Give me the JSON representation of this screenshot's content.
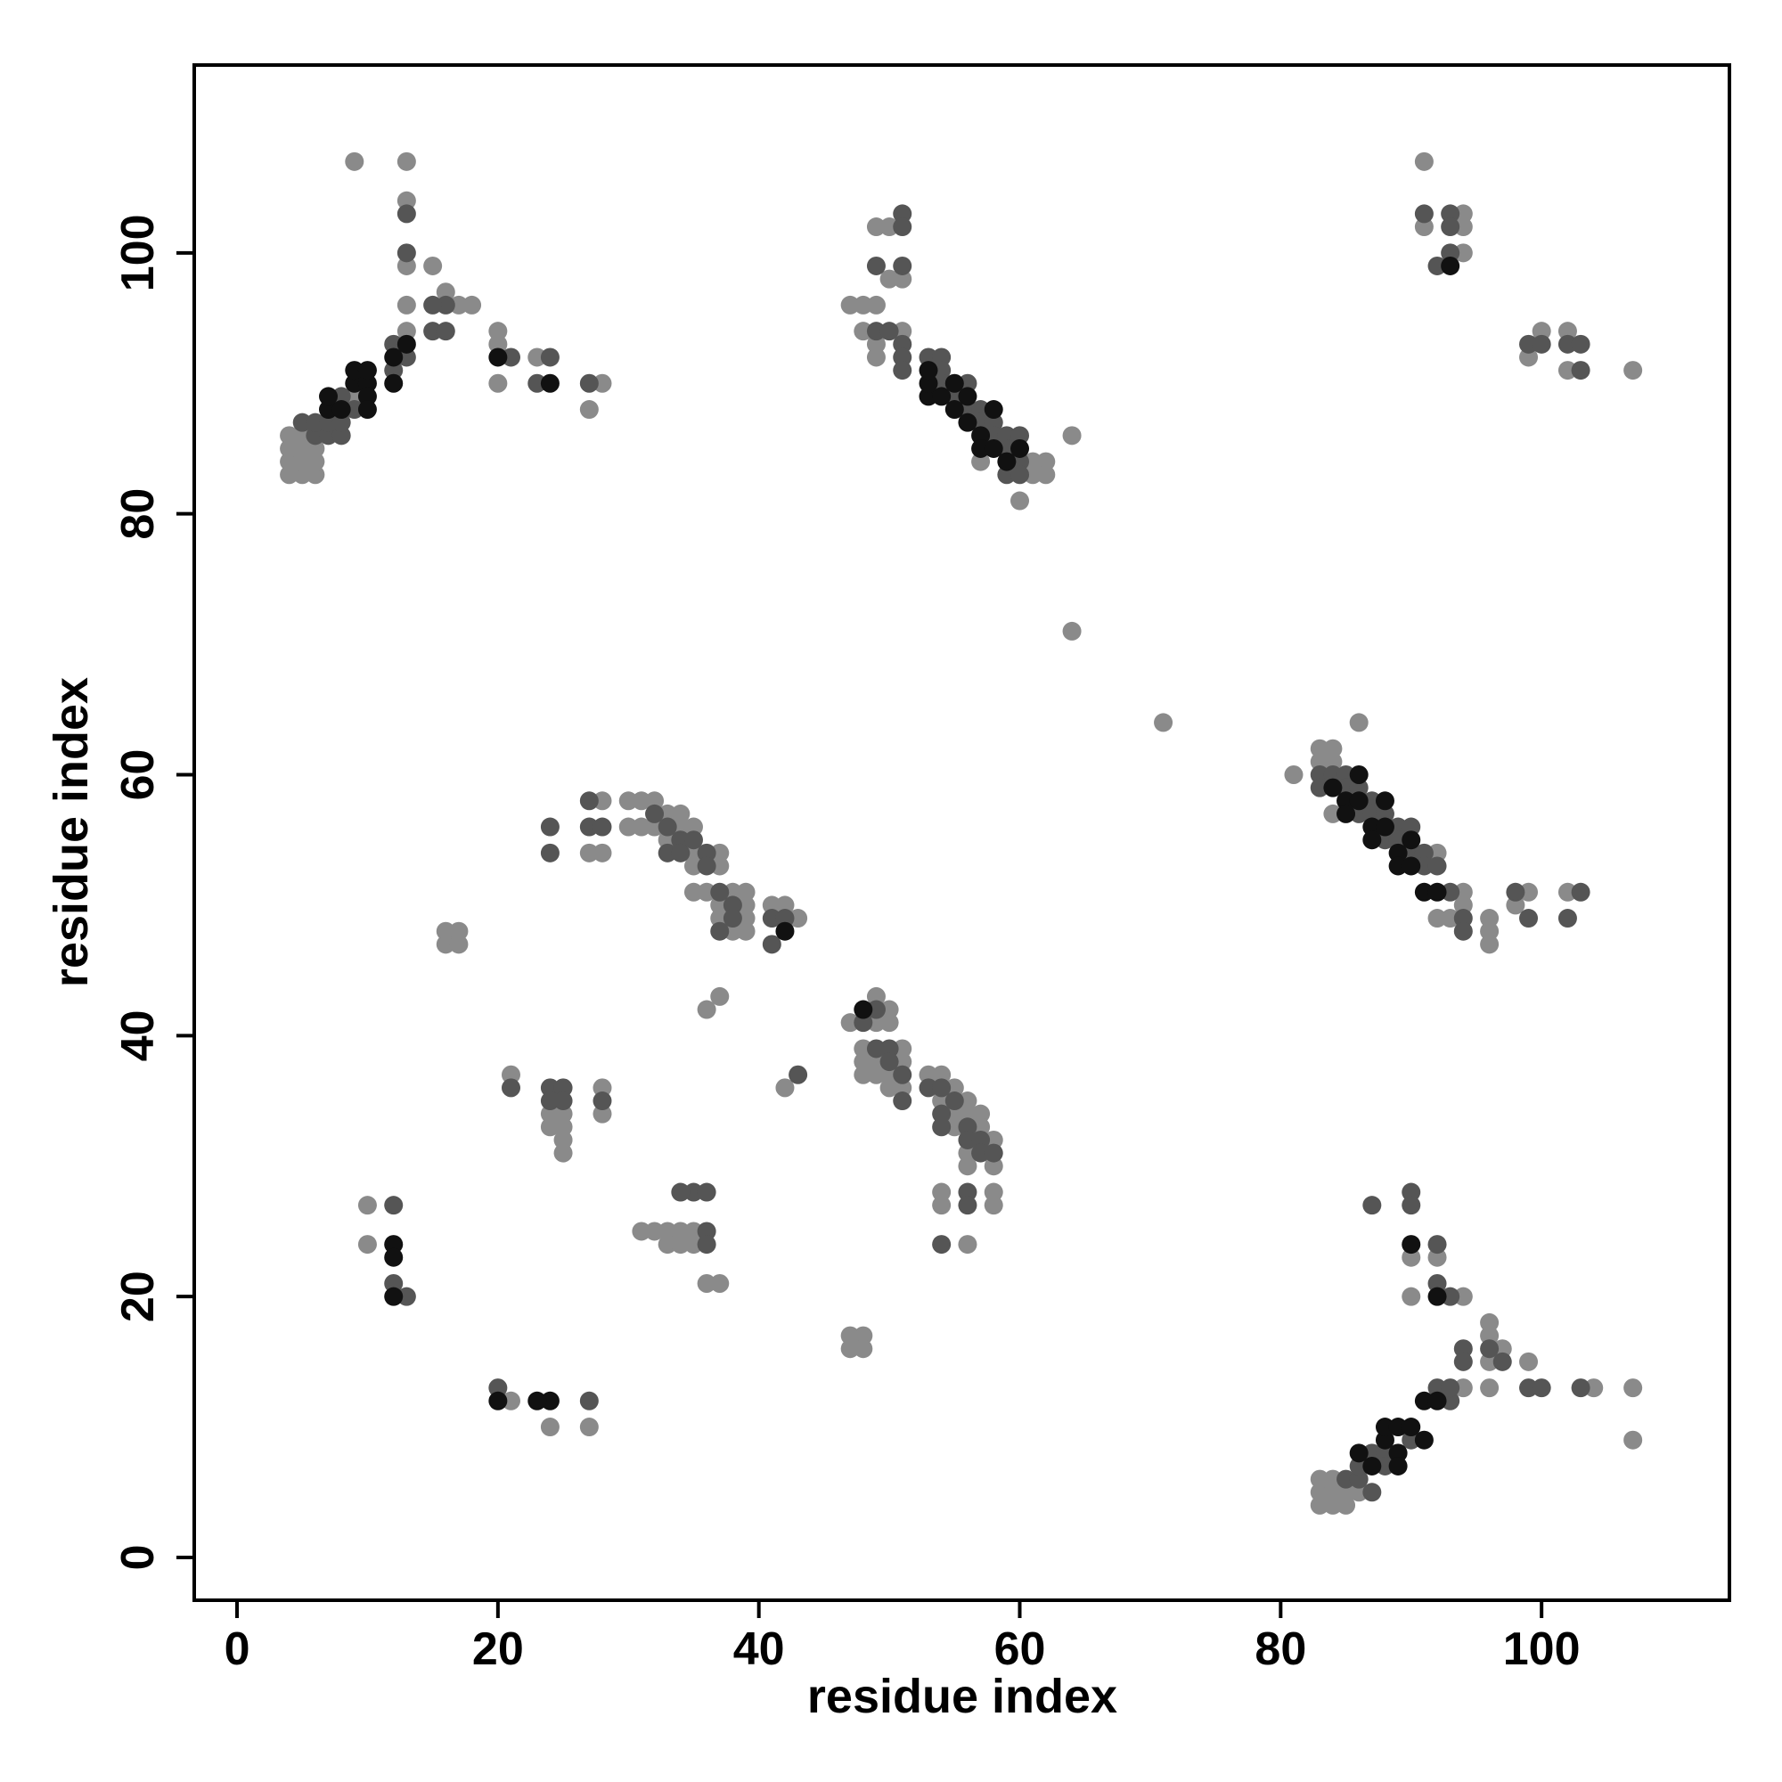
{
  "chart_data": {
    "type": "scatter",
    "x_label": "residue index",
    "y_label": "residue index",
    "xlim": [
      -3.28,
      114.4
    ],
    "ylim": [
      -3.28,
      114.4
    ],
    "xticks": [
      0,
      20,
      40,
      60,
      80,
      100
    ],
    "yticks": [
      0,
      20,
      40,
      60,
      80,
      100
    ],
    "grid": false,
    "series": [
      {
        "color": "#8a8a8a",
        "x": [
          4,
          4,
          4,
          4,
          5,
          5,
          5,
          5,
          6,
          6,
          6,
          9,
          9,
          13,
          13,
          13,
          13,
          13,
          15,
          16,
          17,
          18,
          20,
          20,
          20,
          23,
          28,
          27,
          47,
          48,
          49,
          48,
          49,
          49,
          50,
          51,
          49,
          50,
          51,
          57,
          60,
          61,
          61,
          62,
          62,
          64,
          64,
          71,
          81,
          83,
          83,
          84,
          84,
          84,
          86,
          92,
          92,
          93,
          94,
          94,
          96,
          96,
          96,
          98,
          99,
          102,
          83,
          83,
          83,
          84,
          84,
          84,
          85,
          85,
          86,
          90,
          90,
          92,
          94,
          96,
          96,
          96,
          97,
          96,
          94,
          99,
          104,
          107,
          107,
          91,
          91,
          94,
          94,
          94,
          99,
          100,
          102,
          102,
          107,
          27,
          28,
          28,
          30,
          31,
          32,
          30,
          31,
          32,
          33,
          33,
          34,
          34,
          35,
          35,
          35,
          37,
          37,
          35,
          36,
          38,
          39,
          37,
          39,
          37,
          39,
          38,
          39,
          41,
          42,
          43,
          16,
          17,
          16,
          17,
          36,
          37,
          47,
          49,
          49,
          50,
          50,
          48,
          48,
          48,
          49,
          49,
          50,
          50,
          51,
          51,
          51,
          53,
          54,
          54,
          55,
          55,
          55,
          56,
          56,
          56,
          56,
          57,
          57,
          58,
          58,
          54,
          54,
          58,
          58,
          56,
          42,
          47,
          48,
          47,
          48,
          21,
          24,
          25,
          24,
          25,
          25,
          25,
          28,
          28,
          10,
          10,
          31,
          32,
          33,
          34,
          35,
          33,
          34,
          35,
          36,
          37,
          21,
          24,
          27
        ],
        "y": [
          83,
          84,
          85,
          86,
          83,
          84,
          85,
          86,
          83,
          84,
          85,
          89,
          107,
          107,
          104,
          99,
          96,
          94,
          99,
          97,
          96,
          96,
          94,
          93,
          90,
          92,
          90,
          88,
          96,
          96,
          96,
          94,
          93,
          92,
          98,
          98,
          102,
          102,
          94,
          84,
          81,
          84,
          83,
          84,
          83,
          86,
          71,
          64,
          60,
          62,
          61,
          62,
          61,
          57,
          64,
          54,
          49,
          49,
          51,
          50,
          49,
          48,
          47,
          50,
          51,
          51,
          4,
          5,
          6,
          4,
          5,
          6,
          4,
          5,
          5,
          23,
          20,
          23,
          20,
          18,
          17,
          15,
          16,
          13,
          13,
          15,
          13,
          13,
          9,
          107,
          102,
          103,
          102,
          100,
          92,
          94,
          94,
          91,
          91,
          54,
          58,
          54,
          58,
          58,
          58,
          56,
          56,
          56,
          57,
          55,
          57,
          56,
          56,
          54,
          53,
          54,
          53,
          51,
          51,
          51,
          51,
          50,
          50,
          49,
          49,
          48,
          48,
          50,
          50,
          49,
          48,
          48,
          47,
          47,
          42,
          43,
          41,
          43,
          41,
          42,
          41,
          39,
          38,
          37,
          38,
          37,
          37,
          36,
          39,
          38,
          36,
          37,
          37,
          35,
          36,
          34,
          33,
          35,
          34,
          31,
          30,
          34,
          33,
          32,
          30,
          28,
          27,
          28,
          27,
          24,
          36,
          17,
          17,
          16,
          16,
          37,
          34,
          34,
          33,
          33,
          32,
          31,
          36,
          34,
          27,
          24,
          25,
          25,
          25,
          25,
          25,
          24,
          24,
          24,
          21,
          21,
          12,
          10,
          10
        ]
      },
      {
        "color": "#555555",
        "x": [
          5,
          6,
          6,
          7,
          7,
          8,
          8,
          8,
          9,
          12,
          12,
          13,
          13,
          13,
          16,
          15,
          15,
          16,
          21,
          24,
          23,
          27,
          49,
          51,
          51,
          51,
          49,
          50,
          51,
          51,
          51,
          53,
          54,
          54,
          54,
          55,
          56,
          56,
          57,
          57,
          58,
          58,
          59,
          59,
          59,
          60,
          60,
          60,
          83,
          83,
          84,
          85,
          85,
          86,
          86,
          87,
          87,
          88,
          88,
          89,
          89,
          90,
          90,
          91,
          91,
          92,
          93,
          94,
          94,
          98,
          99,
          102,
          103,
          85,
          86,
          86,
          87,
          87,
          88,
          88,
          90,
          92,
          93,
          93,
          87,
          90,
          90,
          92,
          92,
          93,
          94,
          94,
          96,
          97,
          99,
          100,
          103,
          91,
          93,
          93,
          93,
          92,
          99,
          100,
          102,
          103,
          103,
          24,
          24,
          27,
          27,
          28,
          32,
          33,
          33,
          34,
          34,
          35,
          36,
          36,
          37,
          38,
          38,
          37,
          41,
          41,
          42,
          48,
          49,
          50,
          50,
          49,
          51,
          51,
          53,
          54,
          54,
          54,
          55,
          56,
          56,
          57,
          57,
          58,
          54,
          56,
          56,
          12,
          13,
          12,
          24,
          25,
          24,
          25,
          28,
          20,
          27,
          35,
          36,
          34,
          36,
          36,
          43,
          21
        ],
        "y": [
          87,
          86,
          87,
          86,
          87,
          86,
          87,
          89,
          88,
          91,
          93,
          92,
          103,
          100,
          96,
          96,
          94,
          94,
          92,
          92,
          90,
          90,
          99,
          103,
          102,
          99,
          94,
          94,
          93,
          92,
          91,
          92,
          92,
          91,
          90,
          89,
          90,
          88,
          88,
          87,
          87,
          86,
          86,
          85,
          83,
          86,
          84,
          83,
          60,
          59,
          60,
          60,
          59,
          59,
          57,
          58,
          57,
          57,
          55,
          56,
          55,
          56,
          54,
          54,
          53,
          53,
          51,
          49,
          48,
          51,
          49,
          49,
          51,
          6,
          6,
          7,
          5,
          8,
          8,
          7,
          9,
          13,
          12,
          13,
          27,
          28,
          27,
          24,
          21,
          20,
          16,
          15,
          16,
          15,
          13,
          13,
          13,
          103,
          103,
          102,
          100,
          99,
          93,
          93,
          93,
          93,
          91,
          56,
          54,
          58,
          56,
          56,
          57,
          56,
          54,
          55,
          54,
          55,
          54,
          53,
          51,
          50,
          49,
          48,
          47,
          49,
          49,
          41,
          42,
          39,
          38,
          39,
          37,
          35,
          36,
          36,
          34,
          33,
          35,
          33,
          32,
          32,
          31,
          31,
          24,
          28,
          27,
          21,
          20,
          27,
          36,
          36,
          35,
          35,
          35,
          13,
          12,
          28,
          28,
          28,
          25,
          24,
          37,
          36
        ]
      },
      {
        "color": "#111111",
        "x": [
          7,
          7,
          8,
          9,
          9,
          10,
          10,
          10,
          10,
          12,
          12,
          13,
          20,
          24,
          12,
          12,
          12,
          24,
          20,
          23,
          53,
          53,
          54,
          55,
          56,
          57,
          57,
          58,
          59,
          60,
          53,
          55,
          56,
          58,
          84,
          85,
          85,
          86,
          87,
          87,
          88,
          88,
          89,
          89,
          90,
          90,
          91,
          92,
          86,
          86,
          87,
          88,
          88,
          89,
          89,
          89,
          90,
          91,
          92,
          91,
          90,
          92,
          93,
          48,
          42
        ],
        "y": [
          88,
          89,
          88,
          90,
          91,
          90,
          91,
          89,
          88,
          90,
          92,
          93,
          92,
          90,
          24,
          23,
          20,
          12,
          12,
          12,
          89,
          90,
          89,
          88,
          87,
          86,
          85,
          85,
          84,
          85,
          91,
          90,
          89,
          88,
          59,
          58,
          57,
          58,
          56,
          55,
          56,
          58,
          54,
          53,
          55,
          53,
          51,
          51,
          60,
          8,
          7,
          9,
          10,
          10,
          8,
          7,
          10,
          12,
          12,
          9,
          24,
          20,
          99,
          42,
          48
        ]
      }
    ]
  }
}
